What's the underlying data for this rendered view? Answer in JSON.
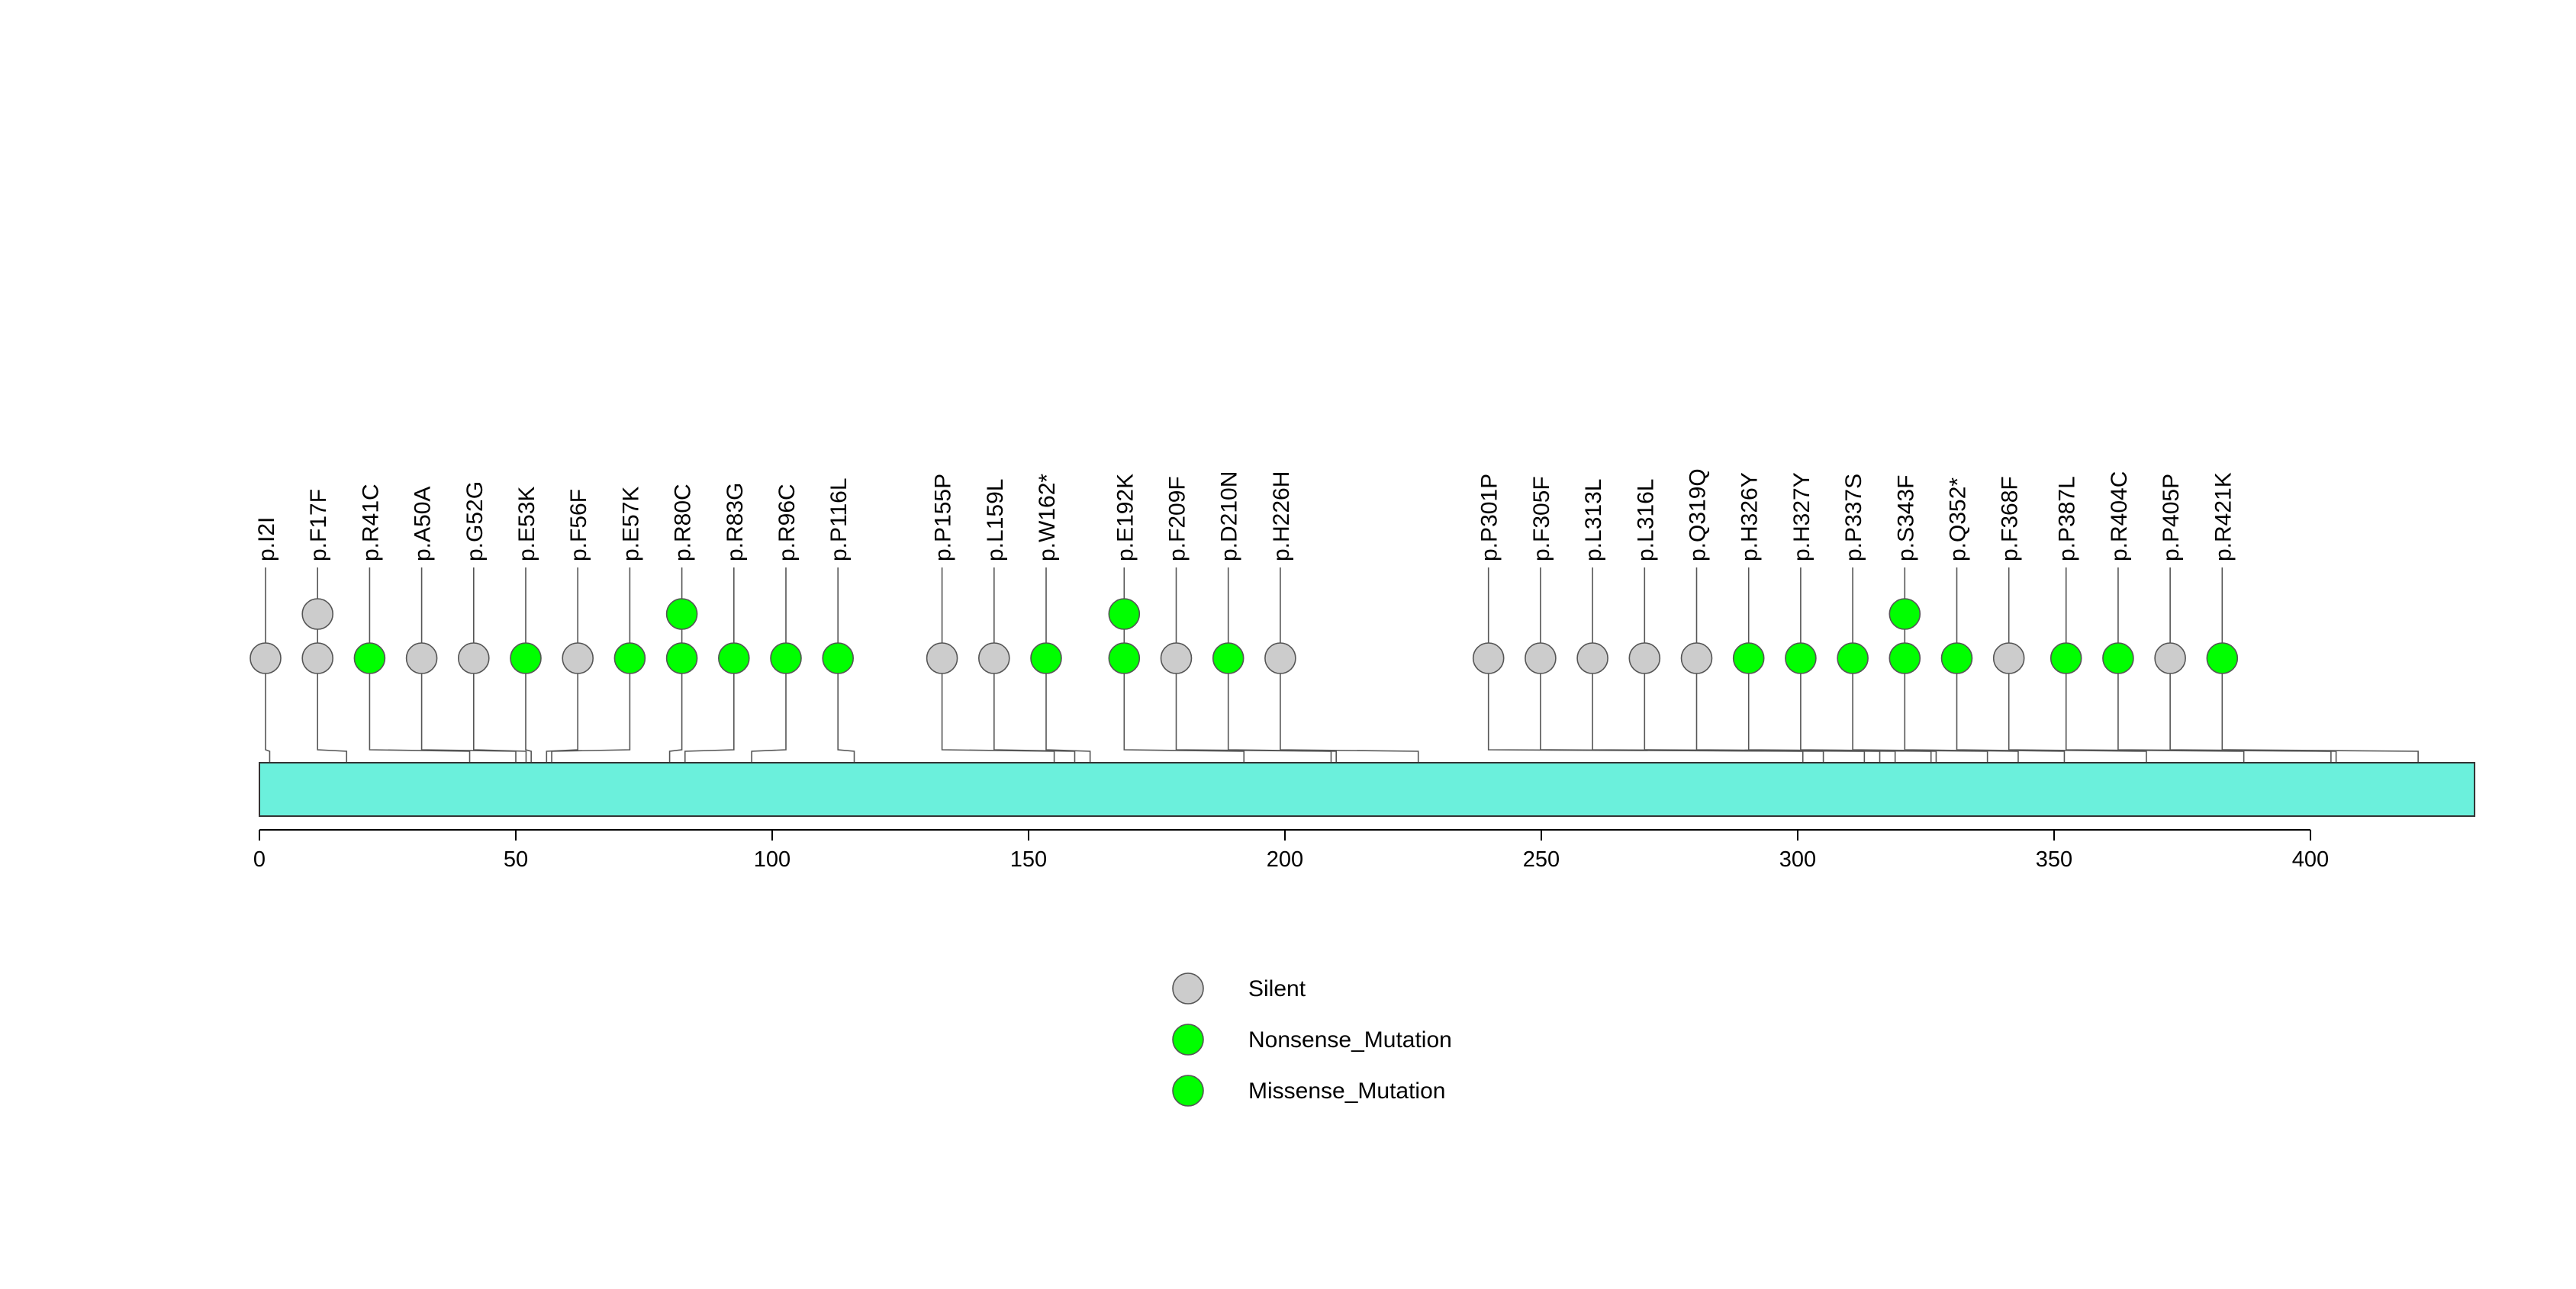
{
  "chart_data": {
    "type": "lollipop",
    "title": "",
    "xlabel": "",
    "ylabel": "",
    "xlim": [
      0,
      432
    ],
    "x_ticks": [
      0,
      50,
      100,
      150,
      200,
      250,
      300,
      350,
      400
    ],
    "protein_length": 432,
    "protein_color": "#6bf0dc",
    "categories": {
      "Silent": "#cccccc",
      "Nonsense_Mutation": "#00ff00",
      "Missense_Mutation": "#00ff00"
    },
    "legend": [
      {
        "label": "Silent",
        "color": "#cccccc"
      },
      {
        "label": "Nonsense_Mutation",
        "color": "#00ff00"
      },
      {
        "label": "Missense_Mutation",
        "color": "#00ff00"
      }
    ],
    "mutations": [
      {
        "label": "p.I2I",
        "position": 2,
        "type": "Silent",
        "count": 1
      },
      {
        "label": "p.F17F",
        "position": 17,
        "type": "Silent",
        "count": 2
      },
      {
        "label": "p.R41C",
        "position": 41,
        "type": "Missense_Mutation",
        "count": 1
      },
      {
        "label": "p.A50A",
        "position": 50,
        "type": "Silent",
        "count": 1
      },
      {
        "label": "p.G52G",
        "position": 52,
        "type": "Silent",
        "count": 1
      },
      {
        "label": "p.E53K",
        "position": 53,
        "type": "Missense_Mutation",
        "count": 1
      },
      {
        "label": "p.F56F",
        "position": 56,
        "type": "Silent",
        "count": 1
      },
      {
        "label": "p.E57K",
        "position": 57,
        "type": "Missense_Mutation",
        "count": 1
      },
      {
        "label": "p.R80C",
        "position": 80,
        "type": "Missense_Mutation",
        "count": 2
      },
      {
        "label": "p.R83G",
        "position": 83,
        "type": "Missense_Mutation",
        "count": 1
      },
      {
        "label": "p.R96C",
        "position": 96,
        "type": "Missense_Mutation",
        "count": 1
      },
      {
        "label": "p.P116L",
        "position": 116,
        "type": "Missense_Mutation",
        "count": 1
      },
      {
        "label": "p.P155P",
        "position": 155,
        "type": "Silent",
        "count": 1
      },
      {
        "label": "p.L159L",
        "position": 159,
        "type": "Silent",
        "count": 1
      },
      {
        "label": "p.W162*",
        "position": 162,
        "type": "Nonsense_Mutation",
        "count": 1
      },
      {
        "label": "p.E192K",
        "position": 192,
        "type": "Missense_Mutation",
        "count": 2
      },
      {
        "label": "p.F209F",
        "position": 209,
        "type": "Silent",
        "count": 1
      },
      {
        "label": "p.D210N",
        "position": 210,
        "type": "Missense_Mutation",
        "count": 1
      },
      {
        "label": "p.H226H",
        "position": 226,
        "type": "Silent",
        "count": 1
      },
      {
        "label": "p.P301P",
        "position": 301,
        "type": "Silent",
        "count": 1
      },
      {
        "label": "p.F305F",
        "position": 305,
        "type": "Silent",
        "count": 1
      },
      {
        "label": "p.L313L",
        "position": 313,
        "type": "Silent",
        "count": 1
      },
      {
        "label": "p.L316L",
        "position": 316,
        "type": "Silent",
        "count": 1
      },
      {
        "label": "p.Q319Q",
        "position": 319,
        "type": "Silent",
        "count": 1
      },
      {
        "label": "p.H326Y",
        "position": 326,
        "type": "Missense_Mutation",
        "count": 1
      },
      {
        "label": "p.H327Y",
        "position": 327,
        "type": "Missense_Mutation",
        "count": 1
      },
      {
        "label": "p.P337S",
        "position": 337,
        "type": "Missense_Mutation",
        "count": 1
      },
      {
        "label": "p.S343F",
        "position": 343,
        "type": "Missense_Mutation",
        "count": 2
      },
      {
        "label": "p.Q352*",
        "position": 352,
        "type": "Nonsense_Mutation",
        "count": 1
      },
      {
        "label": "p.F368F",
        "position": 368,
        "type": "Silent",
        "count": 1
      },
      {
        "label": "p.P387L",
        "position": 387,
        "type": "Missense_Mutation",
        "count": 1
      },
      {
        "label": "p.R404C",
        "position": 404,
        "type": "Missense_Mutation",
        "count": 1
      },
      {
        "label": "p.P405P",
        "position": 405,
        "type": "Silent",
        "count": 1
      },
      {
        "label": "p.R421K",
        "position": 421,
        "type": "Missense_Mutation",
        "count": 1
      }
    ]
  }
}
